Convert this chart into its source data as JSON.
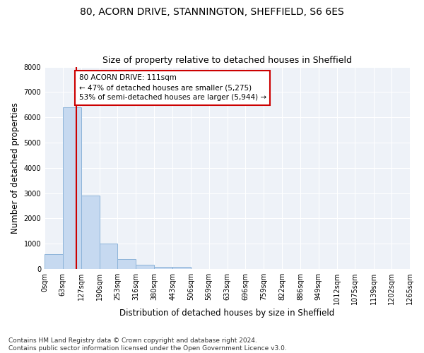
{
  "title1": "80, ACORN DRIVE, STANNINGTON, SHEFFIELD, S6 6ES",
  "title2": "Size of property relative to detached houses in Sheffield",
  "xlabel": "Distribution of detached houses by size in Sheffield",
  "ylabel": "Number of detached properties",
  "bar_values": [
    600,
    6400,
    2900,
    1000,
    380,
    175,
    100,
    75,
    10,
    5,
    3,
    2,
    1,
    1,
    0,
    0,
    0,
    0,
    0,
    0
  ],
  "bin_edges": [
    0,
    63,
    127,
    190,
    253,
    316,
    380,
    443,
    506,
    569,
    633,
    696,
    759,
    822,
    886,
    949,
    1012,
    1075,
    1139,
    1202,
    1265
  ],
  "tick_labels": [
    "0sqm",
    "63sqm",
    "127sqm",
    "190sqm",
    "253sqm",
    "316sqm",
    "380sqm",
    "443sqm",
    "506sqm",
    "569sqm",
    "633sqm",
    "696sqm",
    "759sqm",
    "822sqm",
    "886sqm",
    "949sqm",
    "1012sqm",
    "1075sqm",
    "1139sqm",
    "1202sqm",
    "1265sqm"
  ],
  "bar_color": "#c6d9f0",
  "bar_edge_color": "#8db4d9",
  "property_line_x": 111,
  "property_line_color": "#cc0000",
  "annotation_text": "80 ACORN DRIVE: 111sqm\n← 47% of detached houses are smaller (5,275)\n53% of semi-detached houses are larger (5,944) →",
  "annotation_box_color": "#cc0000",
  "ylim": [
    0,
    8000
  ],
  "yticks": [
    0,
    1000,
    2000,
    3000,
    4000,
    5000,
    6000,
    7000,
    8000
  ],
  "background_color": "#eef2f8",
  "grid_color": "#ffffff",
  "footer_text": "Contains HM Land Registry data © Crown copyright and database right 2024.\nContains public sector information licensed under the Open Government Licence v3.0.",
  "title1_fontsize": 10,
  "title2_fontsize": 9,
  "xlabel_fontsize": 8.5,
  "ylabel_fontsize": 8.5,
  "annotation_fontsize": 7.5,
  "footer_fontsize": 6.5,
  "tick_fontsize": 7
}
